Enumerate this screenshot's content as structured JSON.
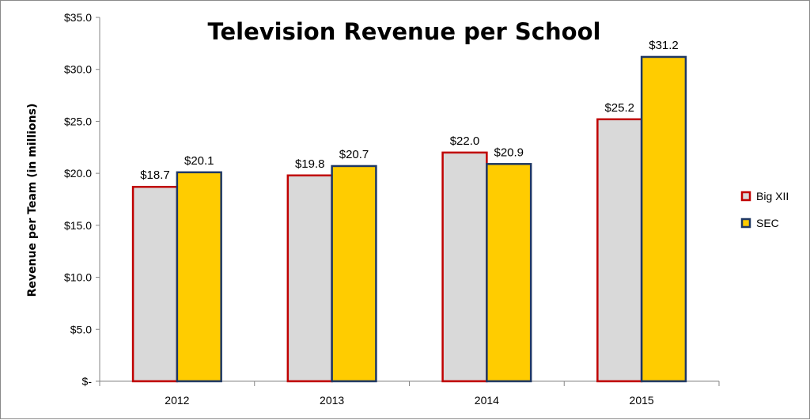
{
  "chart_data": {
    "type": "bar",
    "title": "Television Revenue per School",
    "xlabel": "",
    "ylabel": "Revenue per Team (in millions)",
    "categories": [
      "2012",
      "2013",
      "2014",
      "2015"
    ],
    "series": [
      {
        "name": "Big XII",
        "values": [
          18.7,
          19.8,
          22.0,
          25.2
        ],
        "fill": "#d9d9d9",
        "stroke": "#c00000"
      },
      {
        "name": "SEC",
        "values": [
          20.1,
          20.7,
          20.9,
          31.2
        ],
        "fill": "#ffcc00",
        "stroke": "#1f3864"
      }
    ],
    "data_labels": [
      [
        "$18.7",
        "$19.8",
        "$22.0",
        "$25.2"
      ],
      [
        "$20.1",
        "$20.7",
        "$20.9",
        "$31.2"
      ]
    ],
    "ylim": [
      0,
      35
    ],
    "yticks": [
      0,
      5,
      10,
      15,
      20,
      25,
      30,
      35
    ],
    "ytick_labels": [
      "$-",
      "$5.0",
      "$10.0",
      "$15.0",
      "$20.0",
      "$25.0",
      "$30.0",
      "$35.0"
    ],
    "grid": false,
    "legend_position": "right"
  }
}
